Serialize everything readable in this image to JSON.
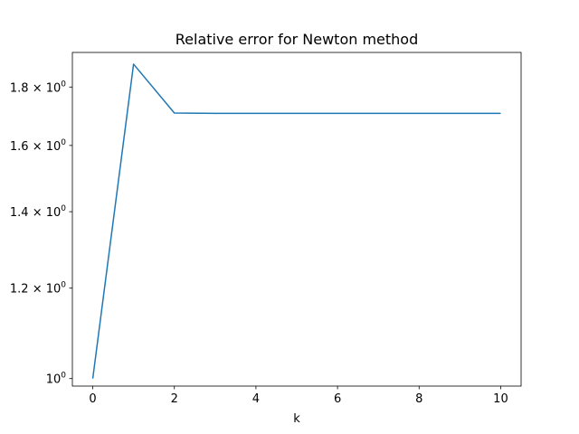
{
  "chart_data": {
    "type": "line",
    "title": "Relative error for Newton method",
    "xlabel": "k",
    "ylabel": "",
    "yscale": "log",
    "grid": false,
    "legend": "none",
    "xlim": [
      -0.5,
      10.5
    ],
    "ylim": [
      0.985,
      1.93
    ],
    "x_ticks": [
      0,
      2,
      4,
      6,
      8,
      10
    ],
    "x_tick_labels": [
      "0",
      "2",
      "4",
      "6",
      "8",
      "10"
    ],
    "y_ticks": [
      1.0,
      1.2,
      1.4,
      1.6,
      1.8
    ],
    "y_tick_labels": [
      {
        "mant": "",
        "base": "10",
        "exp": "0"
      },
      {
        "mant": "1.2 × ",
        "base": "10",
        "exp": "0"
      },
      {
        "mant": "1.4 × ",
        "base": "10",
        "exp": "0"
      },
      {
        "mant": "1.6 × ",
        "base": "10",
        "exp": "0"
      },
      {
        "mant": "1.8 × ",
        "base": "10",
        "exp": "0"
      }
    ],
    "series": [
      {
        "color": "#1f77b4",
        "x": [
          0,
          1,
          2,
          3,
          4,
          5,
          6,
          7,
          8,
          9,
          10
        ],
        "values": [
          1.0,
          1.885,
          1.708,
          1.707,
          1.707,
          1.707,
          1.707,
          1.707,
          1.707,
          1.707,
          1.707
        ]
      }
    ]
  }
}
